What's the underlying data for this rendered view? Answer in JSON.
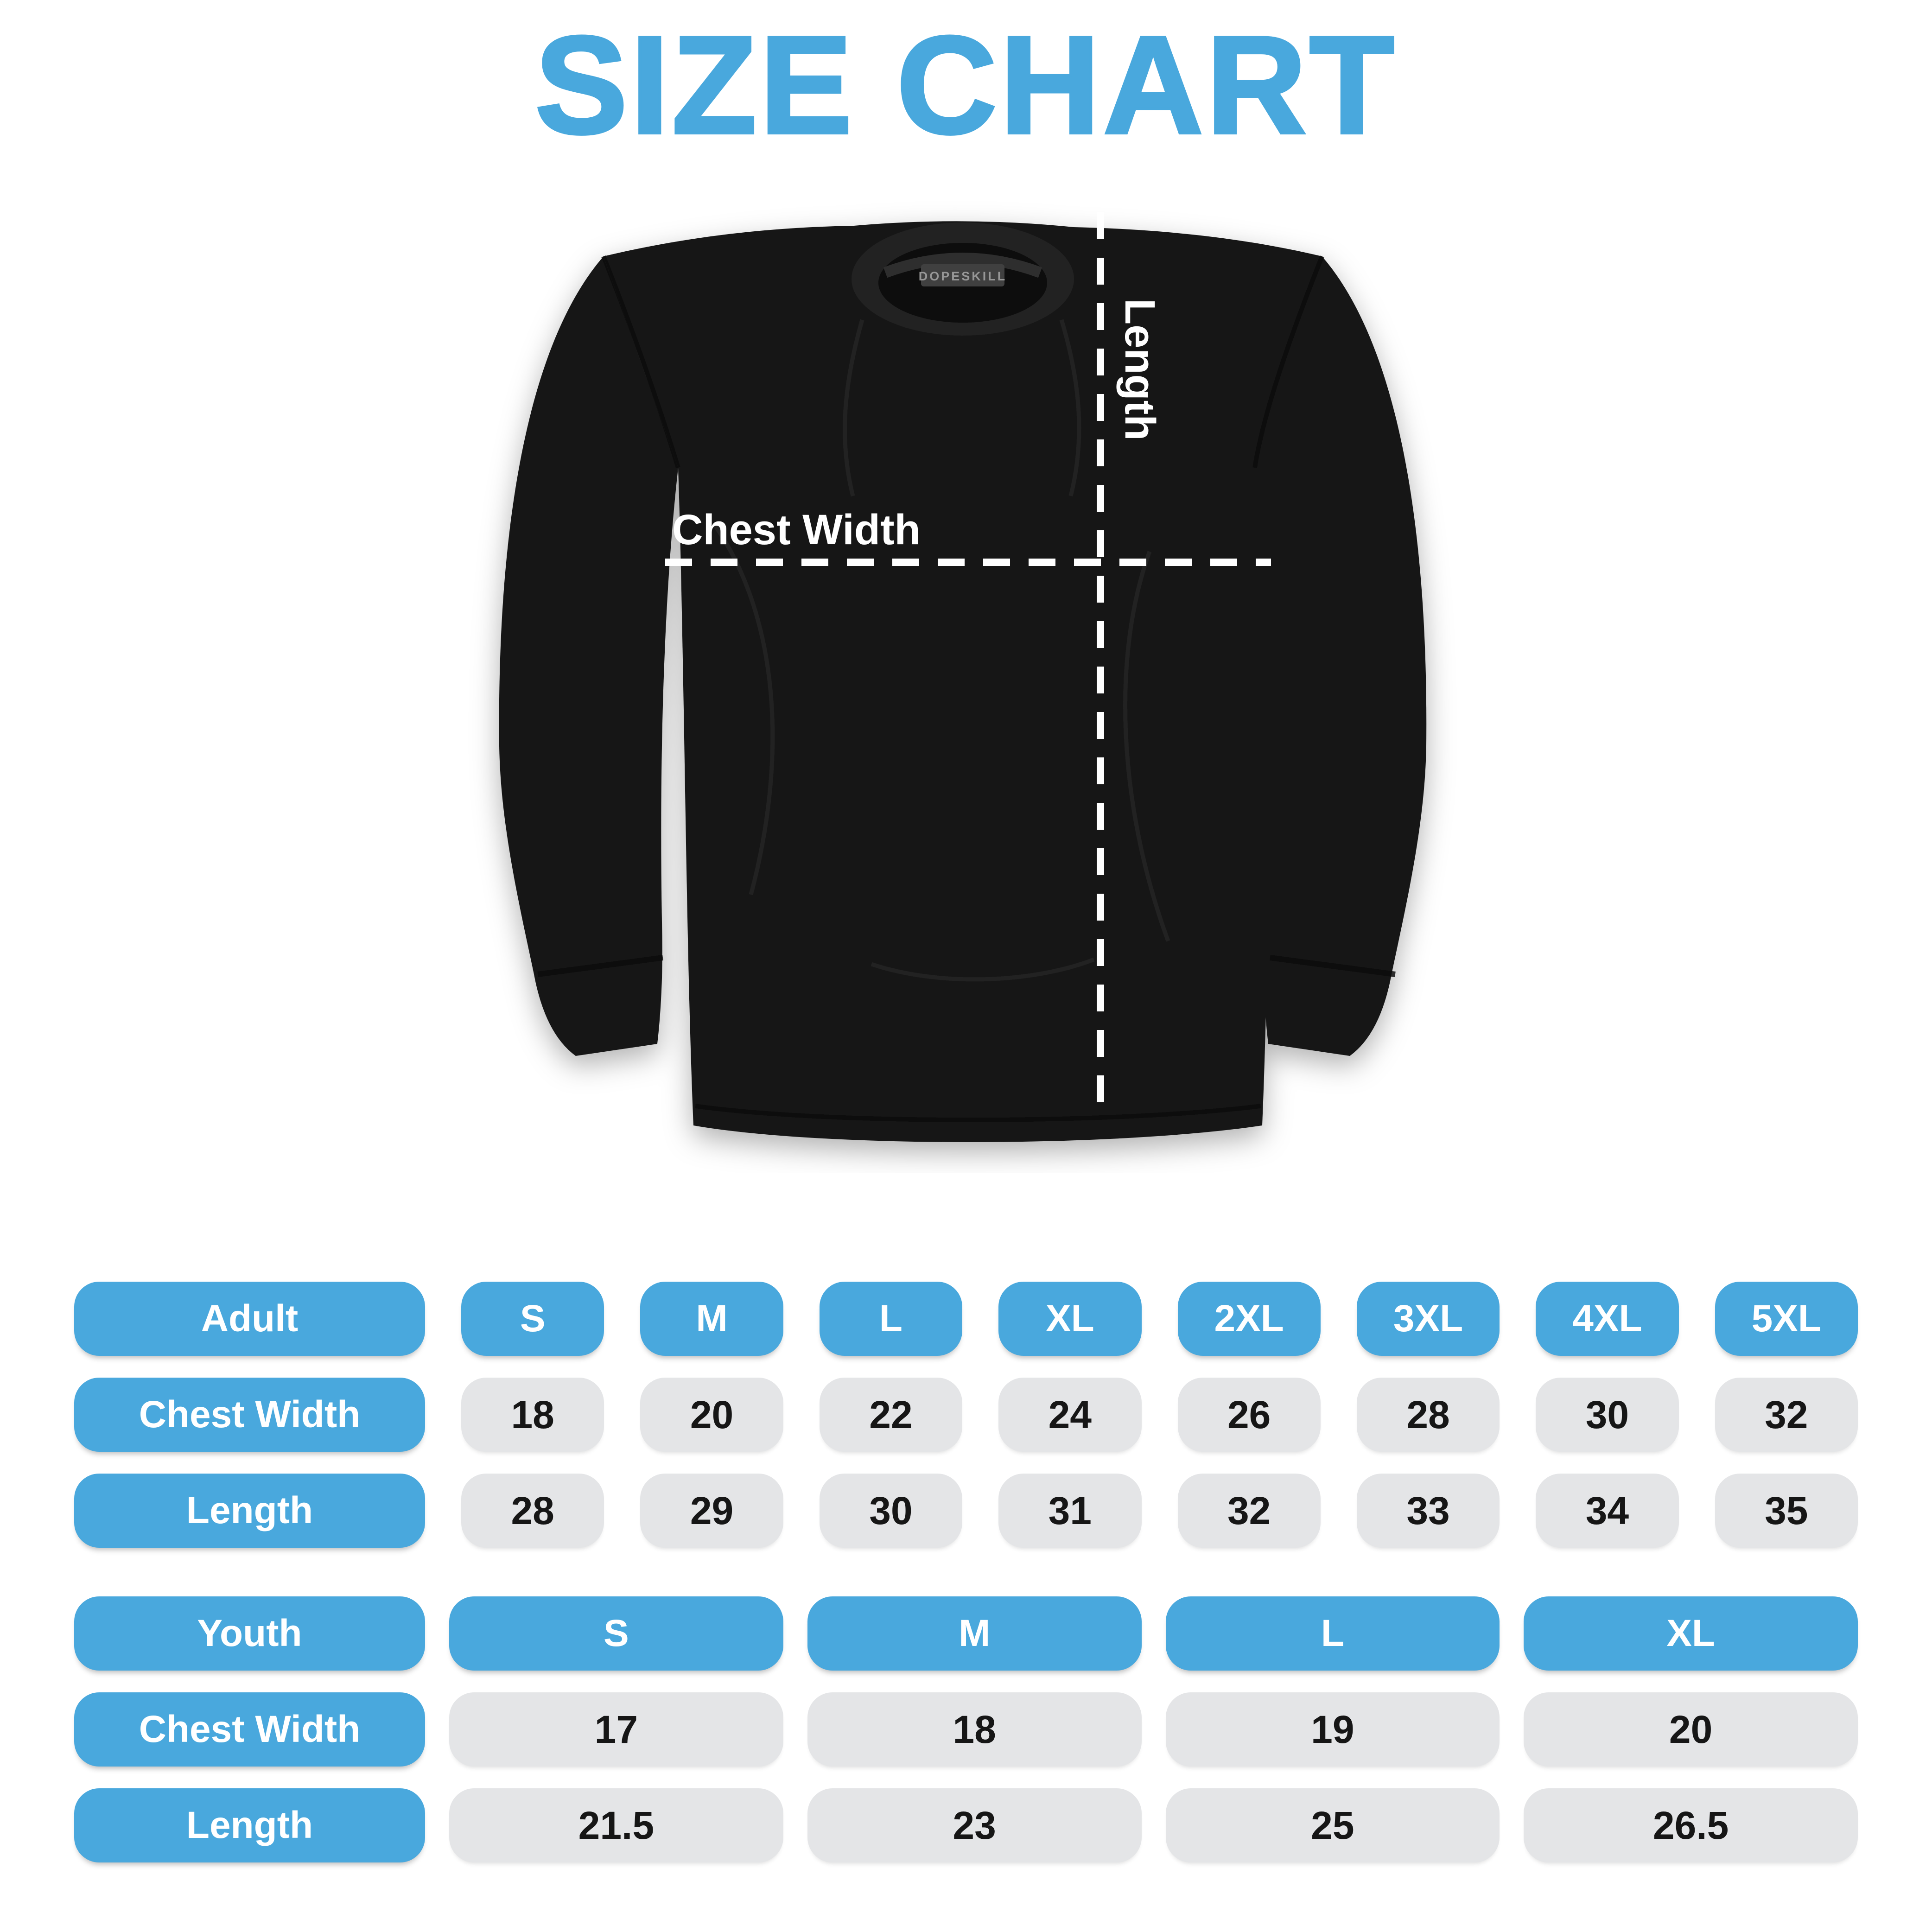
{
  "title": "SIZE CHART",
  "shirt": {
    "brand_tag": "DOPESKILL",
    "chest_width_label": "Chest Width",
    "length_label": "Length"
  },
  "colors": {
    "accent_blue": "#49A8DD",
    "value_pill_gray": "#E4E5E7",
    "value_text": "#161616",
    "shirt_black": "#191919",
    "measure_line_white": "#FFFFFF"
  },
  "chart_data": [
    {
      "type": "table",
      "group_label": "Adult",
      "columns": [
        "S",
        "M",
        "L",
        "XL",
        "2XL",
        "3XL",
        "4XL",
        "5XL"
      ],
      "rows": [
        {
          "label": "Chest Width",
          "values": [
            18,
            20,
            22,
            24,
            26,
            28,
            30,
            32
          ]
        },
        {
          "label": "Length",
          "values": [
            28,
            29,
            30,
            31,
            32,
            33,
            34,
            35
          ]
        }
      ]
    },
    {
      "type": "table",
      "group_label": "Youth",
      "columns": [
        "S",
        "M",
        "L",
        "XL"
      ],
      "rows": [
        {
          "label": "Chest Width",
          "values": [
            17,
            18,
            19,
            20
          ]
        },
        {
          "label": "Length",
          "values": [
            21.5,
            23,
            25,
            26.5
          ]
        }
      ]
    }
  ]
}
